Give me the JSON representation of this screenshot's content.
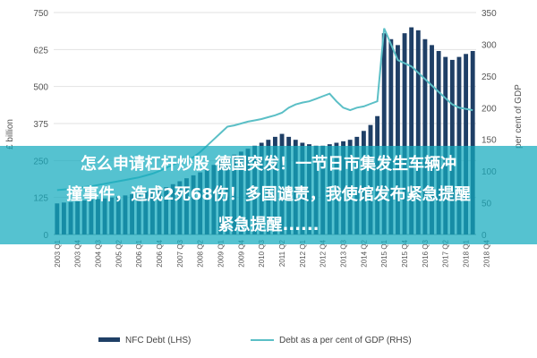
{
  "chart_data": {
    "type": "bar",
    "left_axis_title": "£ billion",
    "right_axis_title": "per cent of GDP",
    "ylim_left": [
      0,
      750
    ],
    "ylim_right": [
      0,
      350
    ],
    "yticks_left": [
      "0",
      "125",
      "250",
      "375",
      "500",
      "625",
      "750"
    ],
    "yticks_right": [
      "0",
      "50",
      "100",
      "150",
      "200",
      "250",
      "300",
      "350"
    ],
    "x_tick_labels": [
      "2003 Q1",
      "2003 Q4",
      "2004 Q3",
      "2005 Q2",
      "2006 Q1",
      "2006 Q4",
      "2007 Q3",
      "2008 Q2",
      "2009 Q1",
      "2009 Q4",
      "2010 Q3",
      "2011 Q2",
      "2012 Q1",
      "2012 Q4",
      "2013 Q3",
      "2014 Q2",
      "2015 Q1",
      "2015 Q4",
      "2016 Q3",
      "2017 Q2",
      "2018 Q1",
      "2018 Q4"
    ],
    "series": [
      {
        "name": "NFC Debt (LHS)",
        "color": "#1f3f66",
        "axis": "left",
        "values": [
          105,
          108,
          110,
          112,
          115,
          118,
          120,
          122,
          125,
          128,
          132,
          136,
          140,
          145,
          150,
          155,
          160,
          170,
          180,
          190,
          200,
          210,
          220,
          235,
          250,
          260,
          270,
          280,
          290,
          300,
          310,
          320,
          330,
          340,
          330,
          320,
          310,
          305,
          300,
          300,
          305,
          310,
          315,
          320,
          330,
          350,
          370,
          400,
          680,
          660,
          640,
          680,
          700,
          690,
          660,
          640,
          620,
          600,
          590,
          600,
          610,
          620
        ]
      },
      {
        "name": "Debt as a per cent of GDP (RHS)",
        "color": "#5bbfc6",
        "axis": "right",
        "values": [
          70,
          71,
          72,
          73,
          75,
          76,
          78,
          80,
          82,
          84,
          86,
          88,
          90,
          93,
          96,
          100,
          105,
          110,
          115,
          118,
          122,
          130,
          140,
          150,
          160,
          170,
          172,
          175,
          178,
          180,
          182,
          185,
          188,
          192,
          200,
          205,
          208,
          210,
          214,
          218,
          222,
          210,
          200,
          196,
          200,
          202,
          206,
          210,
          325,
          300,
          275,
          270,
          265,
          255,
          245,
          235,
          225,
          215,
          205,
          200,
          198,
          196
        ]
      }
    ],
    "legend_position": "bottom"
  },
  "overlay": {
    "line1": "怎么申请杠杆炒股 德国突发！一节日市集发生车辆冲",
    "line2": "撞事件，造成2死68伤！多国谴责，我使馆发布紧急提醒",
    "line3": "紧急提醒......"
  }
}
